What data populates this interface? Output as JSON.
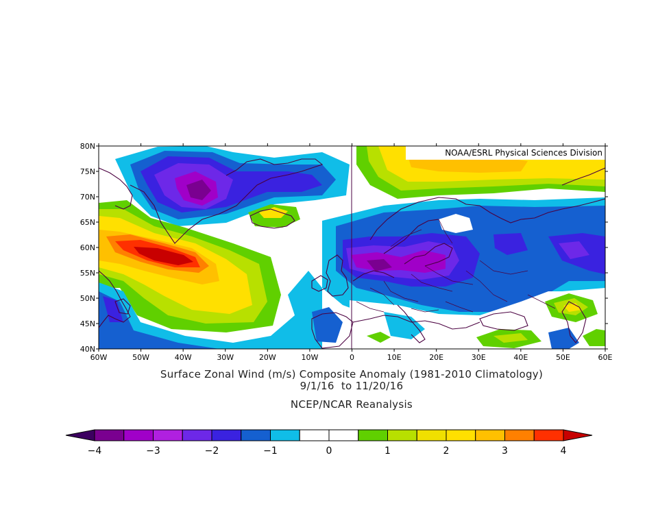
{
  "map": {
    "credit": "NOAA/ESRL Physical Sciences Division",
    "lat_labels": [
      "80N",
      "75N",
      "70N",
      "65N",
      "60N",
      "55N",
      "50N",
      "45N",
      "40N"
    ],
    "lon_labels": [
      "60W",
      "50W",
      "40W",
      "30W",
      "20W",
      "10W",
      "0",
      "10E",
      "20E",
      "30E",
      "40E",
      "50E",
      "60E"
    ],
    "lat_range": [
      40,
      80
    ],
    "lon_range": [
      -60,
      60
    ]
  },
  "caption": {
    "title": "Surface Zonal Wind (m/s) Composite Anomaly (1981-2010 Climatology)",
    "dates": "9/1/16  to 11/20/16",
    "source": "NCEP/NCAR Reanalysis"
  },
  "colorbar": {
    "colors": [
      "#3c0060",
      "#7a0090",
      "#a000c8",
      "#b020e0",
      "#6d28e8",
      "#3a22e0",
      "#1560d0",
      "#10bde8",
      "#ffffff",
      "#ffffff",
      "#60d000",
      "#b8e000",
      "#f0e000",
      "#ffe000",
      "#ffc000",
      "#ff8000",
      "#ff3000",
      "#c80000"
    ],
    "tick_labels": [
      "-4",
      "-3",
      "-2",
      "-1",
      "0",
      "1",
      "2",
      "3",
      "4"
    ]
  },
  "colors": {
    "purple_dark": "#7a0090",
    "violet": "#6d28e8",
    "blue": "#3a22e0",
    "mid_blue": "#1560d0",
    "light_blue": "#10bde8",
    "green": "#60d000",
    "yellow_green": "#b8e000",
    "yellow": "#ffe000",
    "orange": "#ff8000",
    "red_orange": "#ff3000",
    "dark_red": "#c80000",
    "coast": "#4a0040"
  }
}
